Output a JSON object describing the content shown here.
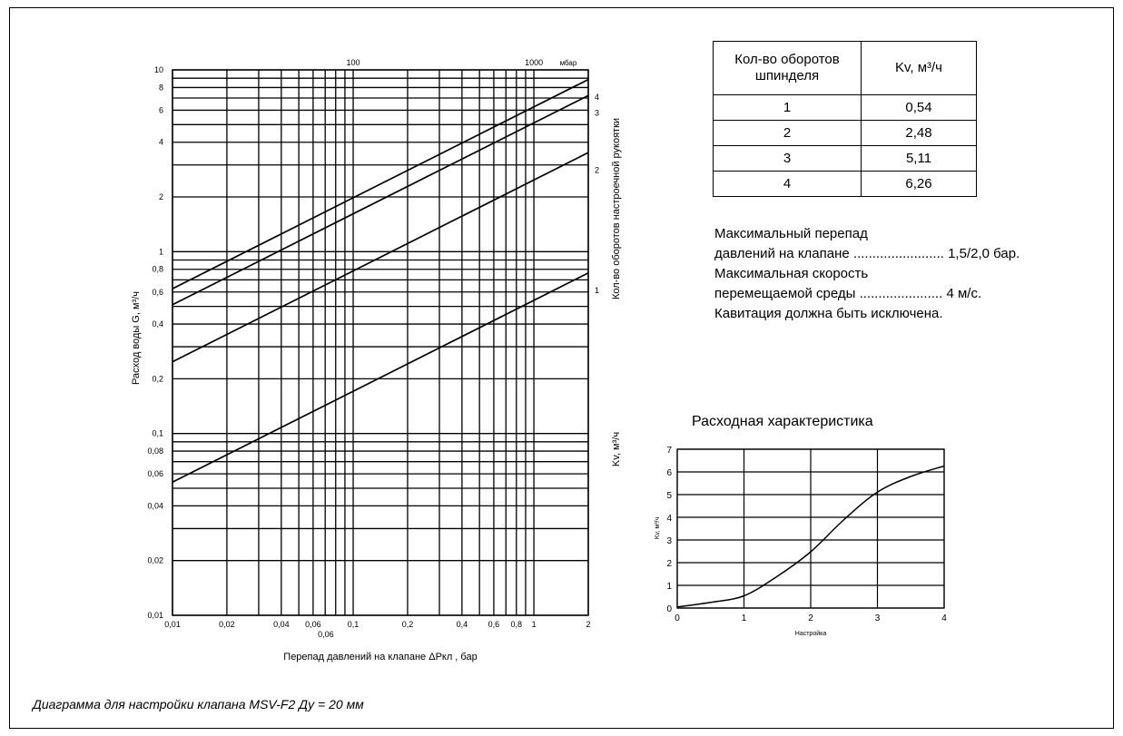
{
  "caption": "Диаграмма для настройки клапана MSV-F2 Ду = 20 мм",
  "table": {
    "headers": [
      "Кол-во оборотов шпинделя",
      "Kv, м³/ч"
    ],
    "rows": [
      [
        "1",
        "0,54"
      ],
      [
        "2",
        "2,48"
      ],
      [
        "3",
        "5,11"
      ],
      [
        "4",
        "6,26"
      ]
    ]
  },
  "notes": [
    {
      "label": "Максимальный перепад",
      "value": ""
    },
    {
      "label": "давлений на клапане ........................",
      "value": "1,5/2,0 бар."
    },
    {
      "label": "Максимальная скорость",
      "value": ""
    },
    {
      "label": "перемещаемой среды ......................",
      "value": "4 м/с."
    },
    {
      "label": "Кавитация должна быть исключена.",
      "value": ""
    }
  ],
  "chart_data": [
    {
      "type": "line",
      "title": "",
      "xlabel": "Перепад давлений на клапане ΔPкл , бар",
      "ylabel": "Расход воды G, м³/ч",
      "right_label_top": "Кол-во оборотов настроечной рукоятки",
      "right_label_bottom": "Kv, м³/ч",
      "x_scale": "log",
      "y_scale": "log",
      "xlim": [
        0.01,
        2
      ],
      "ylim": [
        0.01,
        10
      ],
      "x_ticks": [
        0.01,
        0.02,
        0.04,
        0.06,
        0.1,
        0.2,
        0.4,
        0.6,
        0.8,
        1,
        2
      ],
      "x_tick_labels": [
        "0,01",
        "0,02",
        "0,04",
        "0,06",
        "0,1",
        "0,2",
        "0,4",
        "0,6",
        "0,8",
        "1",
        "2"
      ],
      "x_extra_tick": {
        "value": 0.06,
        "label": "0,06"
      },
      "y_ticks": [
        0.01,
        0.02,
        0.04,
        0.06,
        0.08,
        0.1,
        0.2,
        0.4,
        0.6,
        0.8,
        1,
        2,
        4,
        6,
        8,
        10
      ],
      "y_tick_labels": [
        "0,01",
        "0,02",
        "0,04",
        "0,06",
        "0,08",
        "0,1",
        "0,2",
        "0,4",
        "0,6",
        "0,8",
        "1",
        "2",
        "4",
        "6",
        "8",
        "10"
      ],
      "top_ticks": [
        {
          "value": 0.1,
          "label": "100"
        },
        {
          "value": 1,
          "label": "1000"
        }
      ],
      "top_unit": "мбар",
      "grid": true,
      "series": [
        {
          "label": "1",
          "kv": 0.54
        },
        {
          "label": "2",
          "kv": 2.48
        },
        {
          "label": "3",
          "kv": 5.11
        },
        {
          "label": "4",
          "kv": 6.26
        }
      ]
    },
    {
      "type": "line",
      "title": "Расходная характеристика",
      "xlabel": "Настройка",
      "ylabel": "Kv, м³/ч",
      "xlim": [
        0,
        4
      ],
      "ylim": [
        0,
        7
      ],
      "x_ticks": [
        0,
        1,
        2,
        3,
        4
      ],
      "y_ticks": [
        0,
        1,
        2,
        3,
        4,
        5,
        6,
        7
      ],
      "grid": true,
      "x": [
        0,
        0.5,
        1,
        1.5,
        2,
        2.5,
        3,
        3.5,
        4
      ],
      "y": [
        0.05,
        0.25,
        0.54,
        1.4,
        2.48,
        3.9,
        5.11,
        5.8,
        6.26
      ]
    }
  ]
}
